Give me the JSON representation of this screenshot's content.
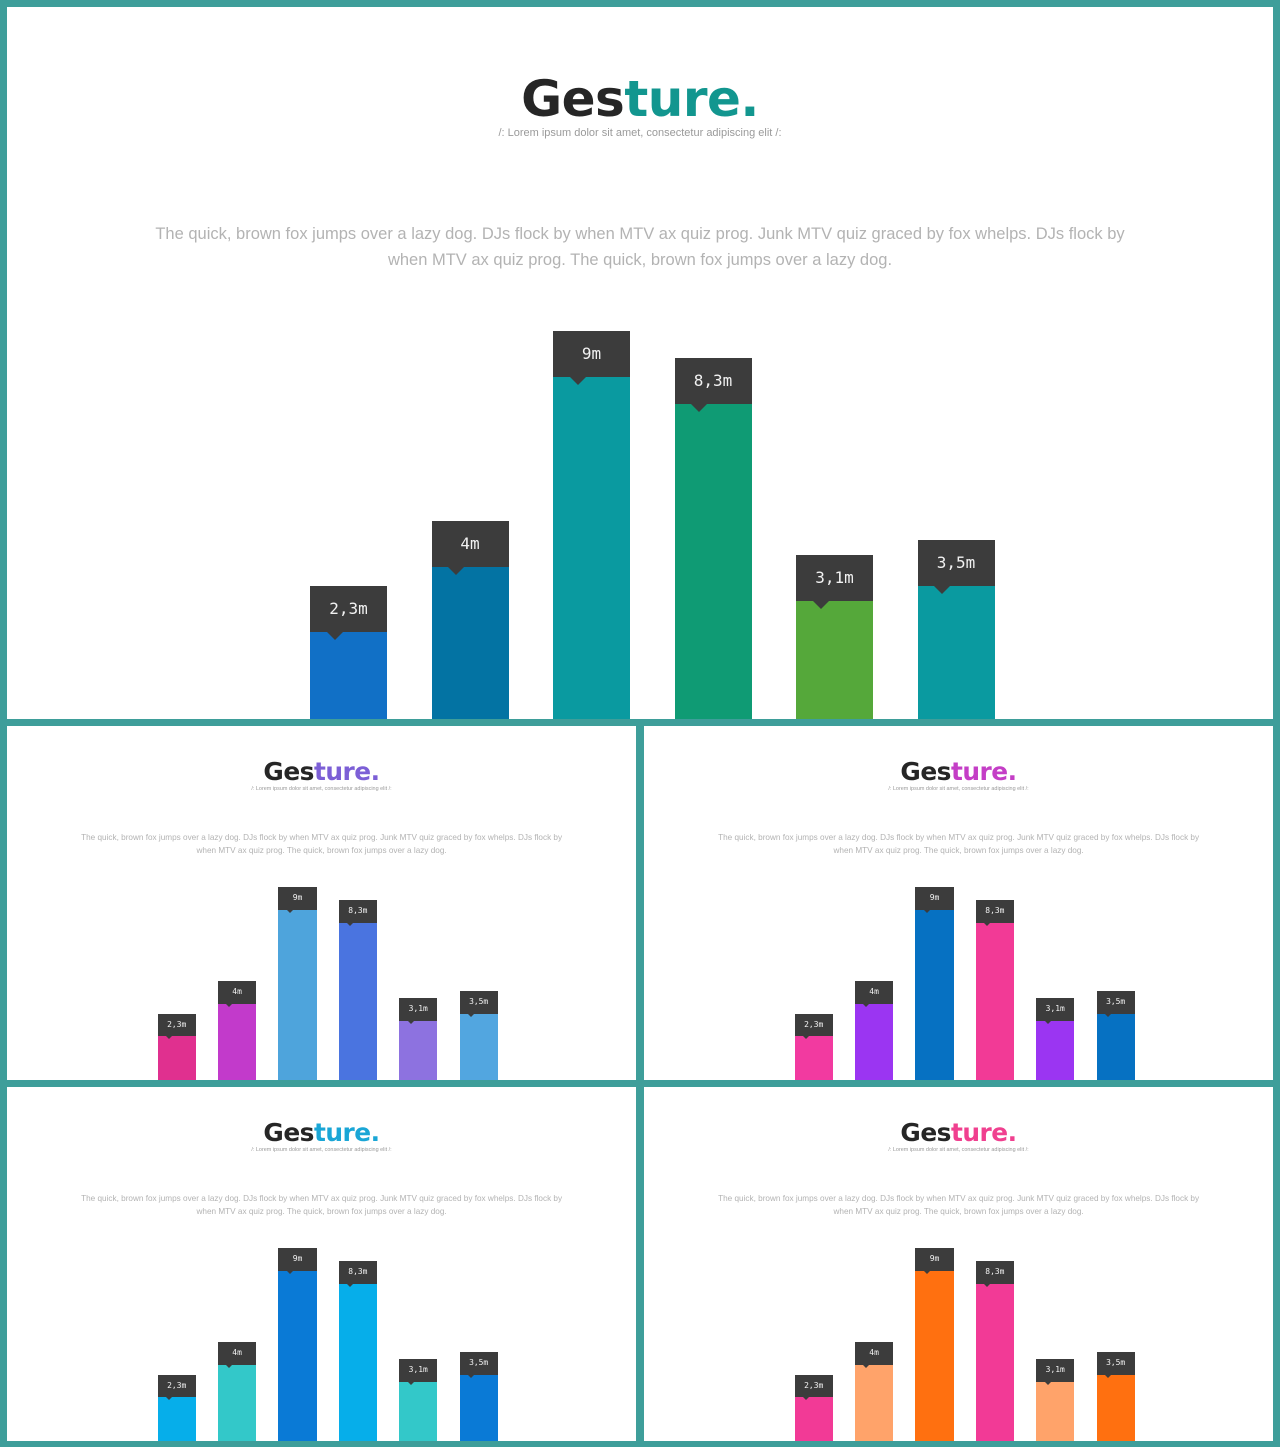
{
  "slides": [
    {
      "title_a": "Ges",
      "title_b": "ture.",
      "accent": "#12968f",
      "subtitle": "/:   Lorem ipsum dolor sit amet, consectetur adipiscing elit   /:",
      "body": "The quick, brown fox jumps over a lazy dog. DJs flock by when MTV ax quiz prog. Junk MTV quiz graced by fox whelps. DJs flock by when MTV ax quiz prog. The quick, brown fox jumps over a lazy dog.",
      "bar_colors": [
        "#1170c6",
        "#0373a3",
        "#0a9aa0",
        "#0f9b74",
        "#55a83a",
        "#0a9aa0"
      ]
    },
    {
      "title_a": "Ges",
      "title_b": "ture.",
      "accent": "#7c5fd6",
      "subtitle": "/:   Lorem ipsum dolor sit amet, consectetur adipiscing elit   /:",
      "body": "The quick, brown fox jumps over a lazy dog. DJs flock by when MTV ax quiz prog. Junk MTV quiz graced by fox whelps. DJs flock by when MTV ax quiz prog. The quick, brown fox jumps over a lazy dog.",
      "bar_colors": [
        "#e0308f",
        "#c23acb",
        "#4ea4dc",
        "#4a74e0",
        "#8d72e0",
        "#52a6e0"
      ]
    },
    {
      "title_a": "Ges",
      "title_b": "ture.",
      "accent": "#c43ec6",
      "subtitle": "/:   Lorem ipsum dolor sit amet, consectetur adipiscing elit   /:",
      "body": "The quick, brown fox jumps over a lazy dog. DJs flock by when MTV ax quiz prog. Junk MTV quiz graced by fox whelps. DJs flock by when MTV ax quiz prog. The quick, brown fox jumps over a lazy dog.",
      "bar_colors": [
        "#f23aa0",
        "#9b35f2",
        "#0671c2",
        "#f23a96",
        "#9b35f2",
        "#0671c2"
      ]
    },
    {
      "title_a": "Ges",
      "title_b": "ture.",
      "accent": "#1aa6d6",
      "subtitle": "/:   Lorem ipsum dolor sit amet, consectetur adipiscing elit   /:",
      "body": "The quick, brown fox jumps over a lazy dog. DJs flock by when MTV ax quiz prog. Junk MTV quiz graced by fox whelps. DJs flock by when MTV ax quiz prog. The quick, brown fox jumps over a lazy dog.",
      "bar_colors": [
        "#06aeea",
        "#33c8c9",
        "#0a7ad6",
        "#06aeea",
        "#33c8c9",
        "#0a7ad6"
      ]
    },
    {
      "title_a": "Ges",
      "title_b": "ture.",
      "accent": "#f0408f",
      "subtitle": "/:   Lorem ipsum dolor sit amet, consectetur adipiscing elit   /:",
      "body": "The quick, brown fox jumps over a lazy dog. DJs flock by when MTV ax quiz prog. Junk MTV quiz graced by fox whelps. DJs flock by when MTV ax quiz prog. The quick, brown fox jumps over a lazy dog.",
      "bar_colors": [
        "#f23a96",
        "#ffa36a",
        "#ff7010",
        "#f23a96",
        "#ffa36a",
        "#ff7010"
      ]
    }
  ],
  "chart_data": {
    "type": "bar",
    "values": [
      2.3,
      4,
      9,
      8.3,
      3.1,
      3.5
    ],
    "data_labels": [
      "2,3m",
      "4m",
      "9m",
      "8,3m",
      "3,1m",
      "3,5m"
    ],
    "ylim": [
      0,
      9
    ],
    "grid": false,
    "legend": "none"
  }
}
